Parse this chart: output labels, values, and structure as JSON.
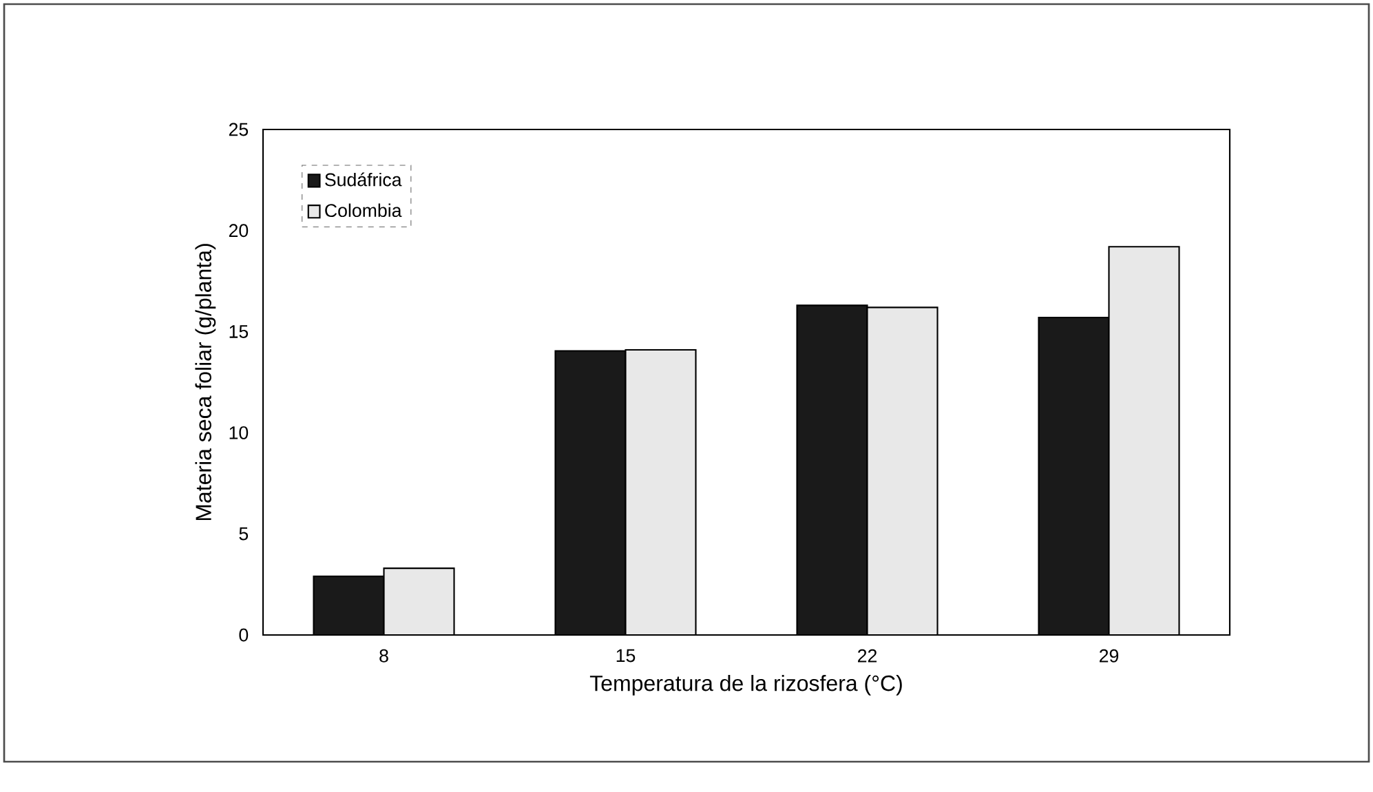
{
  "chart_data": {
    "type": "bar",
    "xlabel": "Temperatura de la rizosfera (°C)",
    "ylabel": "Materia seca foliar (g/planta)",
    "categories": [
      "8",
      "15",
      "22",
      "29"
    ],
    "series": [
      {
        "name": "Sudáfrica",
        "color": "#1a1a1a",
        "values": [
          2.9,
          14.05,
          16.3,
          15.7
        ]
      },
      {
        "name": "Colombia",
        "color": "#e8e8e8",
        "values": [
          3.3,
          14.1,
          16.2,
          19.2
        ]
      }
    ],
    "ylim": [
      0,
      25
    ],
    "yticks": [
      0,
      5,
      10,
      15,
      20,
      25
    ],
    "legend": "top left"
  }
}
